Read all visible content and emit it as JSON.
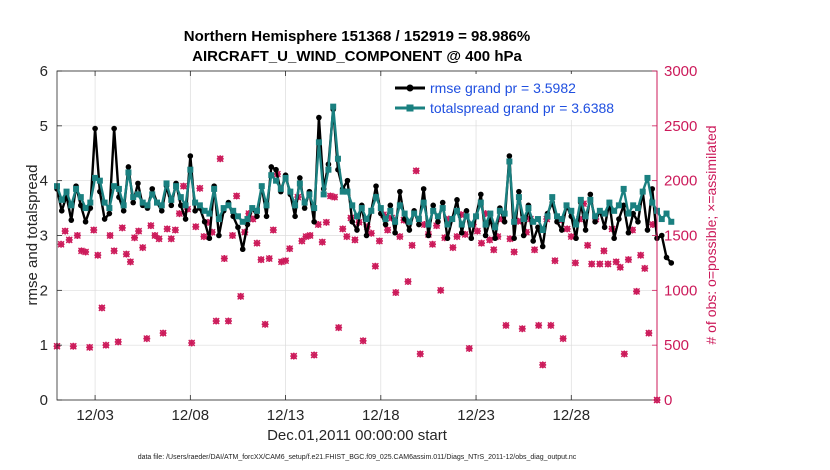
{
  "chart_data": {
    "type": "line",
    "title": "Northern Hemisphere 151368 / 152919 = 98.986%",
    "subtitle": "AIRCRAFT_U_WIND_COMPONENT @ 400 hPa",
    "xlabel": "Dec.01,2011 00:00:00 start",
    "ylabel": "rmse and totalspread",
    "y2label": "# of obs: o=possible; ×=assimilated",
    "footnote": "data file: /Users/raeder/DAI/ATM_forcXX/CAM6_setup/f.e21.FHIST_BGC.f09_025.CAM6assim.011/Diags_NTrS_2011-12/obs_diag_output.nc",
    "xlim": [
      1,
      32.5
    ],
    "ylim": [
      0,
      6
    ],
    "y2lim": [
      0,
      3000
    ],
    "grid": true,
    "x_ticks": [
      3,
      8,
      13,
      18,
      23,
      28
    ],
    "x_tick_labels": [
      "12/03",
      "12/08",
      "12/13",
      "12/18",
      "12/23",
      "12/28"
    ],
    "y_ticks": [
      0,
      1,
      2,
      3,
      4,
      5,
      6
    ],
    "y2_ticks": [
      0,
      500,
      1000,
      1500,
      2000,
      2500,
      3000
    ],
    "legend": {
      "location": "top-right",
      "entries": [
        "rmse grand pr = 3.5982",
        "totalspread grand pr = 3.6388"
      ]
    },
    "x_start": 1.0,
    "x_step": 0.25,
    "series": [
      {
        "name": "rmse",
        "color": "#000000",
        "values": [
          3.85,
          3.45,
          3.72,
          3.28,
          3.9,
          3.55,
          3.25,
          3.5,
          4.95,
          3.8,
          3.3,
          3.4,
          4.95,
          3.7,
          3.45,
          4.25,
          3.6,
          3.95,
          3.55,
          3.5,
          3.85,
          3.6,
          3.45,
          3.9,
          3.55,
          3.95,
          3.55,
          3.3,
          4.45,
          3.45,
          3.5,
          3.25,
          2.95,
          3.9,
          3.0,
          3.45,
          3.6,
          3.35,
          3.15,
          2.75,
          3.2,
          3.5,
          3.35,
          3.9,
          3.35,
          4.25,
          4.2,
          3.8,
          4.1,
          3.75,
          3.35,
          4.05,
          3.5,
          3.8,
          3.25,
          5.15,
          3.85,
          4.3,
          5.3,
          4.2,
          3.85,
          4.0,
          3.25,
          3.1,
          3.55,
          3.0,
          3.45,
          3.9,
          3.4,
          3.2,
          3.55,
          3.05,
          3.8,
          3.3,
          3.1,
          3.45,
          3.2,
          3.85,
          3.0,
          3.55,
          3.25,
          3.6,
          2.95,
          3.3,
          3.65,
          3.05,
          3.45,
          2.95,
          3.35,
          3.75,
          3.0,
          3.3,
          2.95,
          3.5,
          3.25,
          4.45,
          2.95,
          3.8,
          3.0,
          3.55,
          2.9,
          3.15,
          2.8,
          3.4,
          3.6,
          3.25,
          3.1,
          3.55,
          3.35,
          2.95,
          3.6,
          3.1,
          3.75,
          3.25,
          3.45,
          3.15,
          3.6,
          2.95,
          3.3,
          3.55,
          3.05,
          3.4,
          3.25,
          3.8,
          3.1,
          3.85,
          2.95,
          3.0,
          2.6,
          2.5
        ],
        "marker": "dot"
      },
      {
        "name": "totalspread",
        "color": "#1a8080",
        "values": [
          3.9,
          3.65,
          3.8,
          3.55,
          3.85,
          3.7,
          3.5,
          3.6,
          4.05,
          4.0,
          3.6,
          3.5,
          3.9,
          3.85,
          3.55,
          4.15,
          3.7,
          3.75,
          3.6,
          3.55,
          3.75,
          3.6,
          3.55,
          3.95,
          3.65,
          3.9,
          3.7,
          3.55,
          4.2,
          3.6,
          3.55,
          3.45,
          3.4,
          3.85,
          3.3,
          3.5,
          3.55,
          3.45,
          3.35,
          3.25,
          3.3,
          3.5,
          3.45,
          3.9,
          3.55,
          4.1,
          4.0,
          3.85,
          4.05,
          3.8,
          3.55,
          3.95,
          3.6,
          3.75,
          3.5,
          4.7,
          3.75,
          4.2,
          5.35,
          4.4,
          3.8,
          3.8,
          3.55,
          3.35,
          3.5,
          3.3,
          3.45,
          3.7,
          3.5,
          3.3,
          3.45,
          3.25,
          3.55,
          3.4,
          3.25,
          3.4,
          3.3,
          3.6,
          3.2,
          3.45,
          3.35,
          3.5,
          3.2,
          3.3,
          3.45,
          3.2,
          3.35,
          3.2,
          3.35,
          3.6,
          3.2,
          3.4,
          3.15,
          3.45,
          3.4,
          4.35,
          3.25,
          3.7,
          3.3,
          3.5,
          3.25,
          3.3,
          3.1,
          3.35,
          3.7,
          3.35,
          3.3,
          3.55,
          3.45,
          3.2,
          3.65,
          3.35,
          3.65,
          3.35,
          3.45,
          3.4,
          3.6,
          3.45,
          3.55,
          3.85,
          3.4,
          3.55,
          3.5,
          3.8,
          4.05,
          3.6,
          3.45,
          3.3,
          3.4,
          3.25
        ],
        "marker": "square"
      }
    ],
    "obs_counts": {
      "name": "# of obs",
      "color": "#cc1a5a",
      "possible": [
        490,
        1420,
        1540,
        1460,
        490,
        1500,
        1360,
        1350,
        480,
        1550,
        1320,
        840,
        500,
        1500,
        1360,
        530,
        1570,
        1330,
        1260,
        1480,
        1540,
        1390,
        560,
        1590,
        1500,
        1470,
        610,
        1560,
        1470,
        1550,
        1700,
        1950,
        1740,
        520,
        1580,
        1930,
        1490,
        1620,
        1530,
        720,
        2200,
        1290,
        720,
        1500,
        1860,
        945,
        1530,
        1700,
        1650,
        1430,
        1280,
        690,
        1290,
        1550,
        2060,
        1260,
        1270,
        1380,
        400,
        1850,
        1450,
        1490,
        1500,
        410,
        1600,
        1440,
        1620,
        1860,
        1850,
        660,
        1560,
        1490,
        1660,
        1460,
        1620,
        540,
        1580,
        1520,
        1220,
        1450,
        1690,
        1550,
        1660,
        980,
        1490,
        1640,
        1080,
        1410,
        2090,
        420,
        1600,
        1510,
        1420,
        1590,
        1000,
        1480,
        1650,
        1390,
        1490,
        1690,
        1510,
        470,
        1600,
        1540,
        1430,
        1700,
        1460,
        1370,
        1490,
        1650,
        680,
        1470,
        1350,
        1630,
        650,
        1530,
        1650,
        1370,
        680,
        320,
        1650,
        680,
        1270,
        1640,
        560,
        1560,
        1490,
        1250,
        1650,
        1790,
        1410,
        1240,
        1650,
        1240,
        1360,
        1240,
        1560,
        1260,
        1210,
        420,
        1280,
        1550,
        990,
        1320,
        1200,
        610,
        1600,
        0
      ],
      "assimilated": [
        490,
        1420,
        1540,
        1460,
        490,
        1500,
        1360,
        1350,
        480,
        1550,
        1320,
        840,
        500,
        1500,
        1360,
        530,
        1570,
        1330,
        1260,
        1480,
        1540,
        1390,
        560,
        1590,
        1500,
        1470,
        610,
        1560,
        1470,
        1550,
        1700,
        1950,
        1740,
        520,
        1580,
        1930,
        1490,
        1620,
        1530,
        720,
        2200,
        1290,
        720,
        1500,
        1860,
        945,
        1530,
        1700,
        1650,
        1430,
        1280,
        690,
        1290,
        1550,
        2060,
        1260,
        1270,
        1380,
        400,
        1850,
        1450,
        1490,
        1500,
        410,
        1600,
        1440,
        1620,
        1860,
        1850,
        660,
        1560,
        1490,
        1660,
        1460,
        1620,
        540,
        1580,
        1520,
        1220,
        1450,
        1690,
        1550,
        1660,
        980,
        1490,
        1640,
        1080,
        1410,
        2090,
        420,
        1600,
        1510,
        1420,
        1590,
        1000,
        1480,
        1650,
        1390,
        1490,
        1690,
        1510,
        470,
        1600,
        1540,
        1430,
        1700,
        1460,
        1370,
        1490,
        1650,
        680,
        1470,
        1350,
        1630,
        650,
        1530,
        1650,
        1370,
        680,
        320,
        1650,
        680,
        1270,
        1640,
        560,
        1560,
        1490,
        1250,
        1650,
        1790,
        1410,
        1240,
        1650,
        1240,
        1360,
        1240,
        1560,
        1260,
        1210,
        420,
        1280,
        1550,
        990,
        1320,
        1200,
        610,
        1600,
        0
      ]
    }
  }
}
